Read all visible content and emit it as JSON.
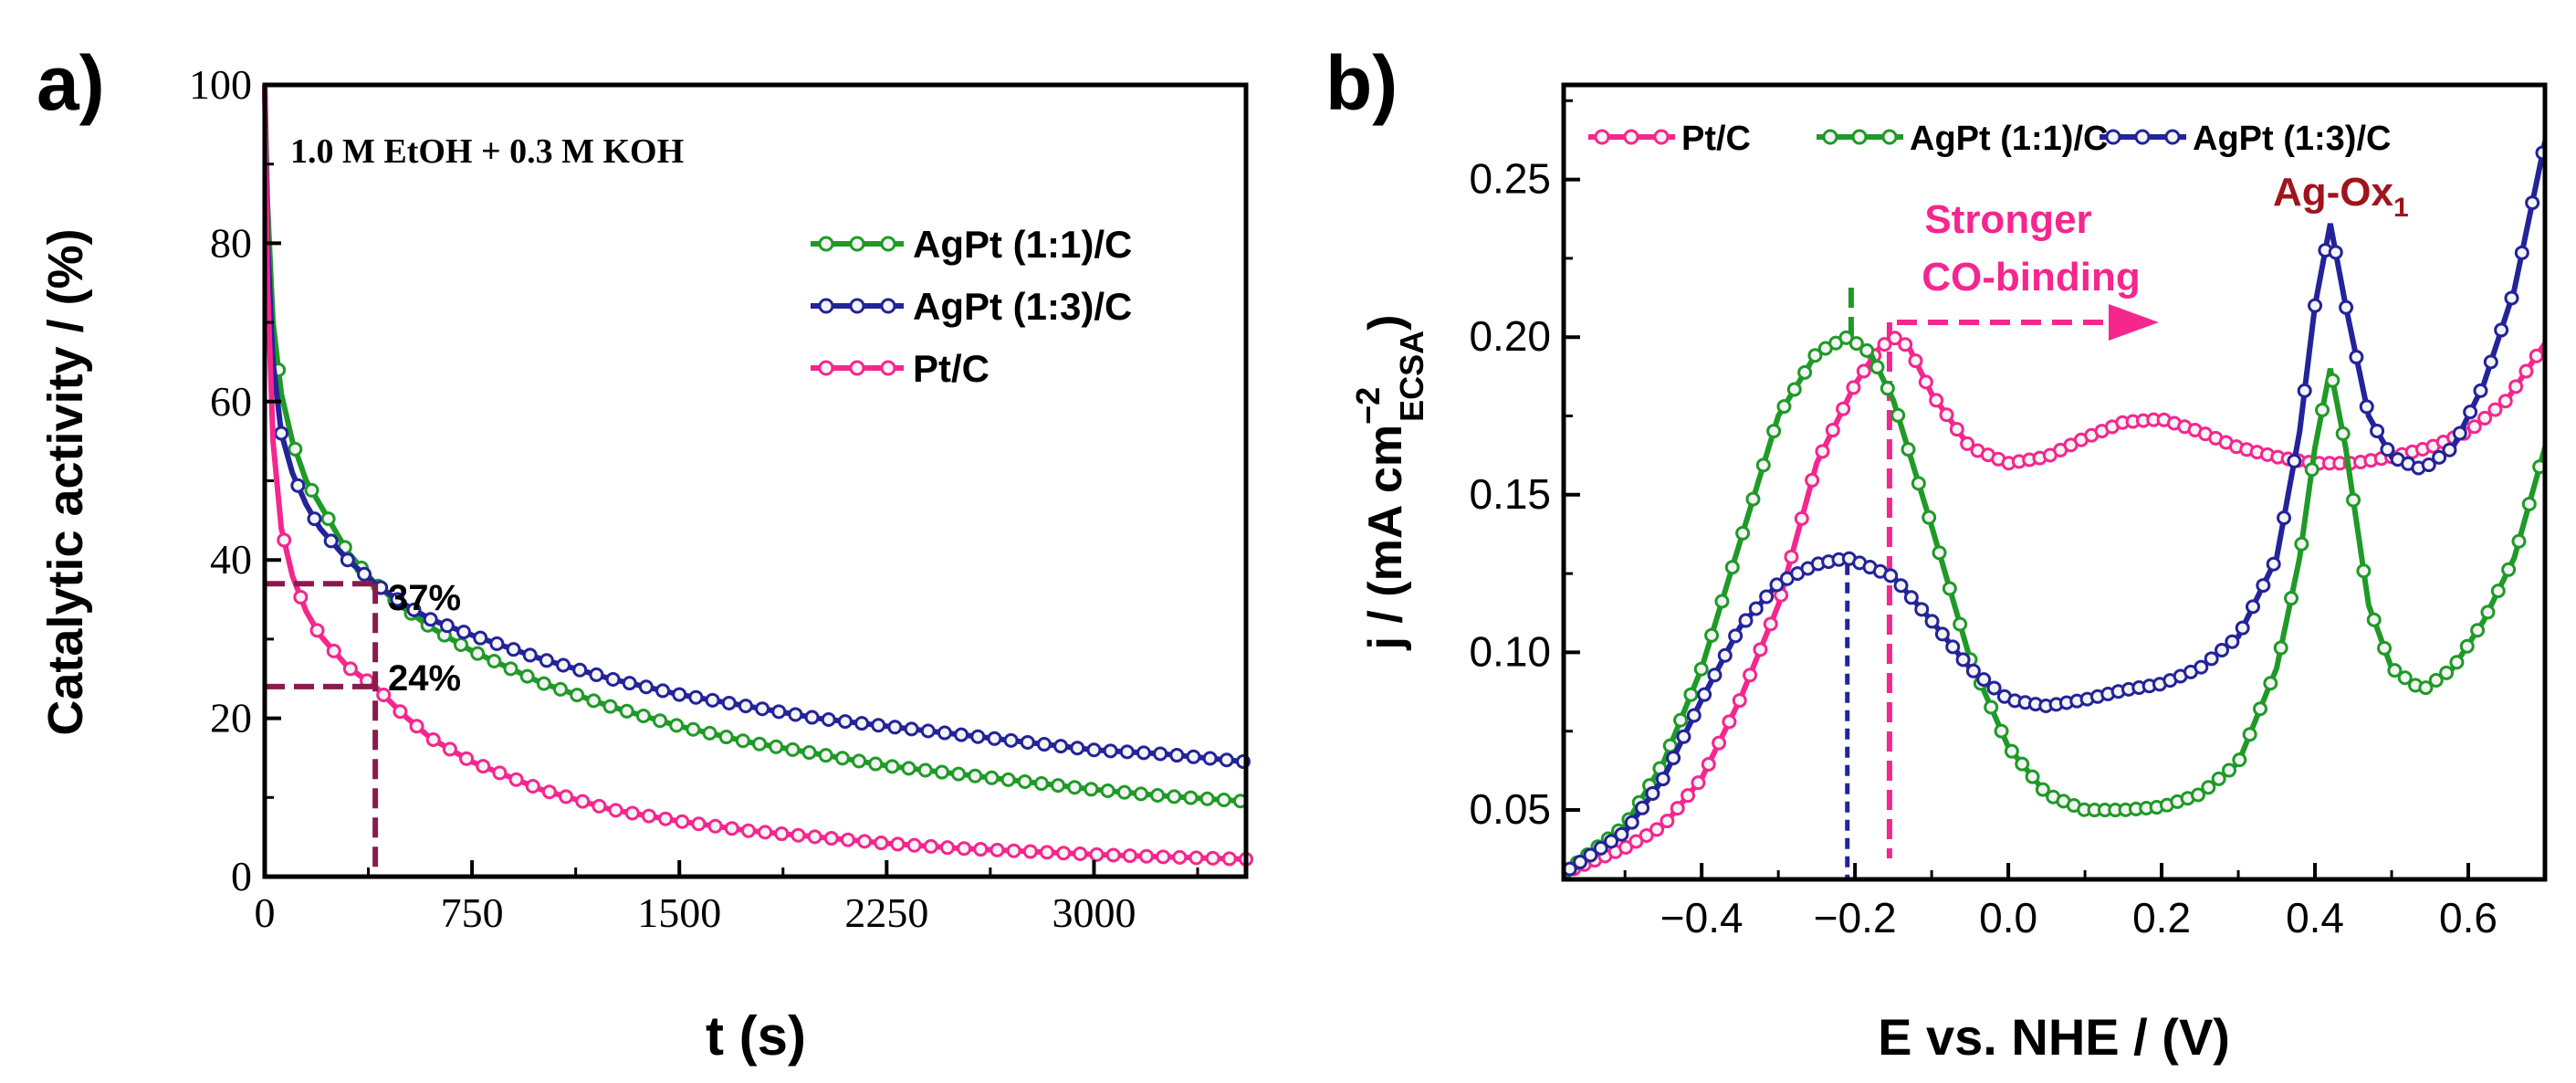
{
  "colors": {
    "green": "#1f9a27",
    "navy": "#23239a",
    "pink": "#f5268e",
    "maroon": "#8a1a4c",
    "darkred": "#a0141c"
  },
  "chart_data": [
    {
      "panel_label": "a)",
      "type": "line",
      "title": "",
      "annotation_text": "1.0 M EtOH + 0.3 M KOH",
      "xlabel": "t (s)",
      "ylabel": "Catalytic activity / (%)",
      "xlim": [
        0,
        3550
      ],
      "ylim": [
        0,
        100
      ],
      "xticks": [
        0,
        750,
        1500,
        2250,
        3000
      ],
      "xtick_labels": [
        "0",
        "750",
        "1500",
        "2250",
        "3000"
      ],
      "yticks": [
        0,
        20,
        40,
        60,
        80,
        100
      ],
      "ytick_labels": [
        "0",
        "20",
        "40",
        "60",
        "80",
        "100"
      ],
      "legend_position": "upper-right",
      "series": [
        {
          "name": "AgPt (1:1)/C",
          "color_key": "green",
          "x": [
            0,
            10,
            30,
            60,
            100,
            150,
            200,
            300,
            400,
            500,
            600,
            750,
            1000,
            1250,
            1500,
            1750,
            2000,
            2250,
            2500,
            2750,
            3000,
            3250,
            3550
          ],
          "y": [
            100,
            85,
            70,
            61,
            55,
            50,
            47,
            41,
            37,
            34,
            31.5,
            28.5,
            24.5,
            21.5,
            19,
            17,
            15.5,
            14,
            13,
            12,
            11,
            10.2,
            9.5
          ]
        },
        {
          "name": "AgPt (1:3)/C",
          "color_key": "navy",
          "x": [
            0,
            10,
            30,
            60,
            100,
            150,
            200,
            300,
            400,
            500,
            600,
            750,
            1000,
            1250,
            1500,
            1750,
            2000,
            2250,
            2500,
            2750,
            3000,
            3250,
            3550
          ],
          "y": [
            100,
            80,
            65,
            56,
            51,
            47,
            44,
            40,
            37,
            34.5,
            32.5,
            30.5,
            27.5,
            25,
            23,
            21.5,
            20,
            19,
            18,
            17,
            16,
            15.5,
            14.5
          ]
        },
        {
          "name": "Pt/C",
          "color_key": "pink",
          "x": [
            0,
            10,
            30,
            60,
            100,
            150,
            200,
            300,
            400,
            500,
            600,
            750,
            1000,
            1250,
            1500,
            1750,
            2000,
            2250,
            2500,
            2750,
            3000,
            3250,
            3550
          ],
          "y": [
            100,
            75,
            55,
            44,
            38,
            33.5,
            30.5,
            26.5,
            24,
            20.5,
            17.5,
            14.5,
            11,
            8.5,
            7,
            5.8,
            5,
            4.2,
            3.6,
            3.2,
            2.8,
            2.5,
            2.2
          ]
        }
      ],
      "markers": {
        "lines_x": 400,
        "levels": [
          37,
          24
        ],
        "labels": [
          "37%",
          "24%"
        ]
      }
    },
    {
      "panel_label": "b)",
      "type": "line",
      "title": "",
      "xlabel": "E vs. NHE / (V)",
      "ylabel_main": "j / (mA cm",
      "ylabel_sup": "−2",
      "ylabel_sub": "ECSA",
      "ylabel_close": ")",
      "xlim": [
        -0.58,
        0.7
      ],
      "ylim": [
        0.028,
        0.28
      ],
      "xticks": [
        -0.4,
        -0.2,
        0.0,
        0.2,
        0.4,
        0.6
      ],
      "xtick_labels": [
        "−0.4",
        "−0.2",
        "0.0",
        "0.2",
        "0.4",
        "0.6"
      ],
      "yticks": [
        0.05,
        0.1,
        0.15,
        0.2,
        0.25
      ],
      "ytick_labels": [
        "0.05",
        "0.10",
        "0.15",
        "0.20",
        "0.25"
      ],
      "legend_position": "top",
      "series": [
        {
          "name": "Pt/C",
          "color_key": "pink",
          "x": [
            -0.58,
            -0.5,
            -0.45,
            -0.4,
            -0.35,
            -0.3,
            -0.25,
            -0.2,
            -0.17,
            -0.15,
            -0.13,
            -0.1,
            -0.05,
            0.0,
            0.05,
            0.1,
            0.15,
            0.2,
            0.25,
            0.3,
            0.35,
            0.4,
            0.45,
            0.5,
            0.55,
            0.6,
            0.65,
            0.7
          ],
          "y": [
            0.03,
            0.038,
            0.045,
            0.06,
            0.085,
            0.115,
            0.16,
            0.185,
            0.196,
            0.2,
            0.197,
            0.182,
            0.165,
            0.16,
            0.162,
            0.168,
            0.173,
            0.174,
            0.17,
            0.165,
            0.162,
            0.16,
            0.16,
            0.162,
            0.165,
            0.17,
            0.18,
            0.198
          ]
        },
        {
          "name": "AgPt (1:1)/C",
          "color_key": "green",
          "x": [
            -0.58,
            -0.5,
            -0.45,
            -0.4,
            -0.35,
            -0.3,
            -0.25,
            -0.21,
            -0.18,
            -0.15,
            -0.1,
            -0.05,
            0.0,
            0.05,
            0.1,
            0.15,
            0.2,
            0.25,
            0.3,
            0.35,
            0.38,
            0.4,
            0.42,
            0.44,
            0.47,
            0.5,
            0.54,
            0.58,
            0.62,
            0.66,
            0.7
          ],
          "y": [
            0.03,
            0.045,
            0.065,
            0.095,
            0.135,
            0.175,
            0.195,
            0.2,
            0.195,
            0.18,
            0.14,
            0.098,
            0.07,
            0.055,
            0.05,
            0.05,
            0.051,
            0.055,
            0.065,
            0.095,
            0.13,
            0.165,
            0.19,
            0.165,
            0.115,
            0.095,
            0.088,
            0.095,
            0.11,
            0.13,
            0.165
          ]
        },
        {
          "name": "AgPt (1:3)/C",
          "color_key": "navy",
          "x": [
            -0.58,
            -0.5,
            -0.45,
            -0.4,
            -0.35,
            -0.3,
            -0.25,
            -0.21,
            -0.15,
            -0.1,
            -0.05,
            0.0,
            0.05,
            0.1,
            0.15,
            0.2,
            0.25,
            0.3,
            0.35,
            0.38,
            0.4,
            0.42,
            0.44,
            0.47,
            0.5,
            0.54,
            0.58,
            0.62,
            0.66,
            0.7
          ],
          "y": [
            0.03,
            0.043,
            0.06,
            0.085,
            0.108,
            0.122,
            0.128,
            0.13,
            0.124,
            0.11,
            0.095,
            0.085,
            0.083,
            0.085,
            0.088,
            0.09,
            0.095,
            0.105,
            0.13,
            0.17,
            0.21,
            0.236,
            0.21,
            0.175,
            0.162,
            0.158,
            0.165,
            0.185,
            0.215,
            0.262
          ]
        }
      ],
      "annotations": {
        "arrow_text_1": "Stronger",
        "arrow_text_2": "CO-binding",
        "peak_label_main": "Ag-Ox",
        "peak_label_sub": "1",
        "pink_dash_x": -0.155,
        "green_dash_x": -0.205,
        "navy_dash_x": -0.21
      }
    }
  ]
}
